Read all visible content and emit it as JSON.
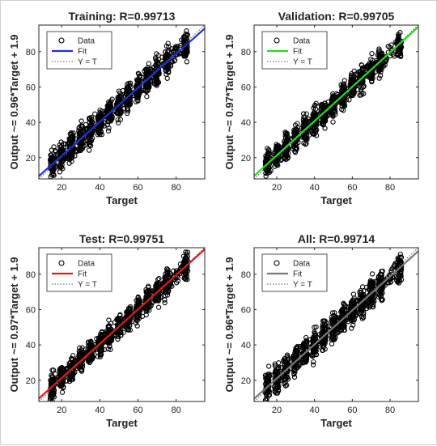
{
  "figure": {
    "background": "#ffffff",
    "marker_color": "#000000"
  },
  "chart_data": [
    {
      "type": "scatter",
      "title": "Training: R=0.99713",
      "xlabel": "Target",
      "ylabel": "Output ~= 0.96*Target + 1.9",
      "xlim": [
        8,
        95
      ],
      "ylim": [
        8,
        95
      ],
      "xticks": [
        20,
        40,
        60,
        80
      ],
      "yticks": [
        20,
        40,
        60,
        80
      ],
      "fit": {
        "slope": 0.96,
        "intercept": 1.9,
        "color": "#1f2fd6"
      },
      "identity_line": {
        "color": "#555555",
        "style": "dotted"
      },
      "target_range": [
        15,
        85
      ],
      "target_clusters": [
        15,
        20,
        25,
        30,
        35,
        40,
        45,
        50,
        55,
        60,
        65,
        70,
        75,
        85
      ],
      "spread": 8,
      "legend": {
        "placement": "top-left",
        "entries": [
          "Data",
          "Fit",
          "Y = T"
        ]
      },
      "grid": false
    },
    {
      "type": "scatter",
      "title": "Validation: R=0.99705",
      "xlabel": "Target",
      "ylabel": "Output ~= 0.97*Target + 1.9",
      "xlim": [
        8,
        95
      ],
      "ylim": [
        8,
        95
      ],
      "xticks": [
        20,
        40,
        60,
        80
      ],
      "yticks": [
        20,
        40,
        60,
        80
      ],
      "fit": {
        "slope": 0.97,
        "intercept": 1.9,
        "color": "#22dd22"
      },
      "identity_line": {
        "color": "#555555",
        "style": "dotted"
      },
      "target_range": [
        15,
        85
      ],
      "target_clusters": [
        15,
        20,
        25,
        30,
        35,
        40,
        45,
        50,
        55,
        60,
        65,
        70,
        75,
        85
      ],
      "spread": 7,
      "legend": {
        "placement": "top-left",
        "entries": [
          "Data",
          "Fit",
          "Y = T"
        ]
      },
      "grid": false
    },
    {
      "type": "scatter",
      "title": "Test: R=0.99751",
      "xlabel": "Target",
      "ylabel": "Output ~= 0.97*Target + 1.9",
      "xlim": [
        8,
        95
      ],
      "ylim": [
        8,
        95
      ],
      "xticks": [
        20,
        40,
        60,
        80
      ],
      "yticks": [
        20,
        40,
        60,
        80
      ],
      "fit": {
        "slope": 0.97,
        "intercept": 1.9,
        "color": "#e01a1a"
      },
      "identity_line": {
        "color": "#555555",
        "style": "dotted"
      },
      "target_range": [
        15,
        85
      ],
      "target_clusters": [
        15,
        20,
        25,
        30,
        35,
        40,
        45,
        50,
        55,
        60,
        65,
        70,
        75,
        85
      ],
      "spread": 7,
      "legend": {
        "placement": "top-left",
        "entries": [
          "Data",
          "Fit",
          "Y = T"
        ]
      },
      "grid": false
    },
    {
      "type": "scatter",
      "title": "All: R=0.99714",
      "xlabel": "Target",
      "ylabel": "Output ~= 0.96*Target + 1.9",
      "xlim": [
        8,
        95
      ],
      "ylim": [
        8,
        95
      ],
      "xticks": [
        20,
        40,
        60,
        80
      ],
      "yticks": [
        20,
        40,
        60,
        80
      ],
      "fit": {
        "slope": 0.96,
        "intercept": 1.9,
        "color": "#777777"
      },
      "identity_line": {
        "color": "#555555",
        "style": "dotted"
      },
      "target_range": [
        15,
        85
      ],
      "target_clusters": [
        15,
        20,
        25,
        30,
        35,
        40,
        45,
        50,
        55,
        60,
        65,
        70,
        75,
        85
      ],
      "spread": 8,
      "legend": {
        "placement": "top-left",
        "entries": [
          "Data",
          "Fit",
          "Y = T"
        ]
      },
      "grid": false
    }
  ]
}
